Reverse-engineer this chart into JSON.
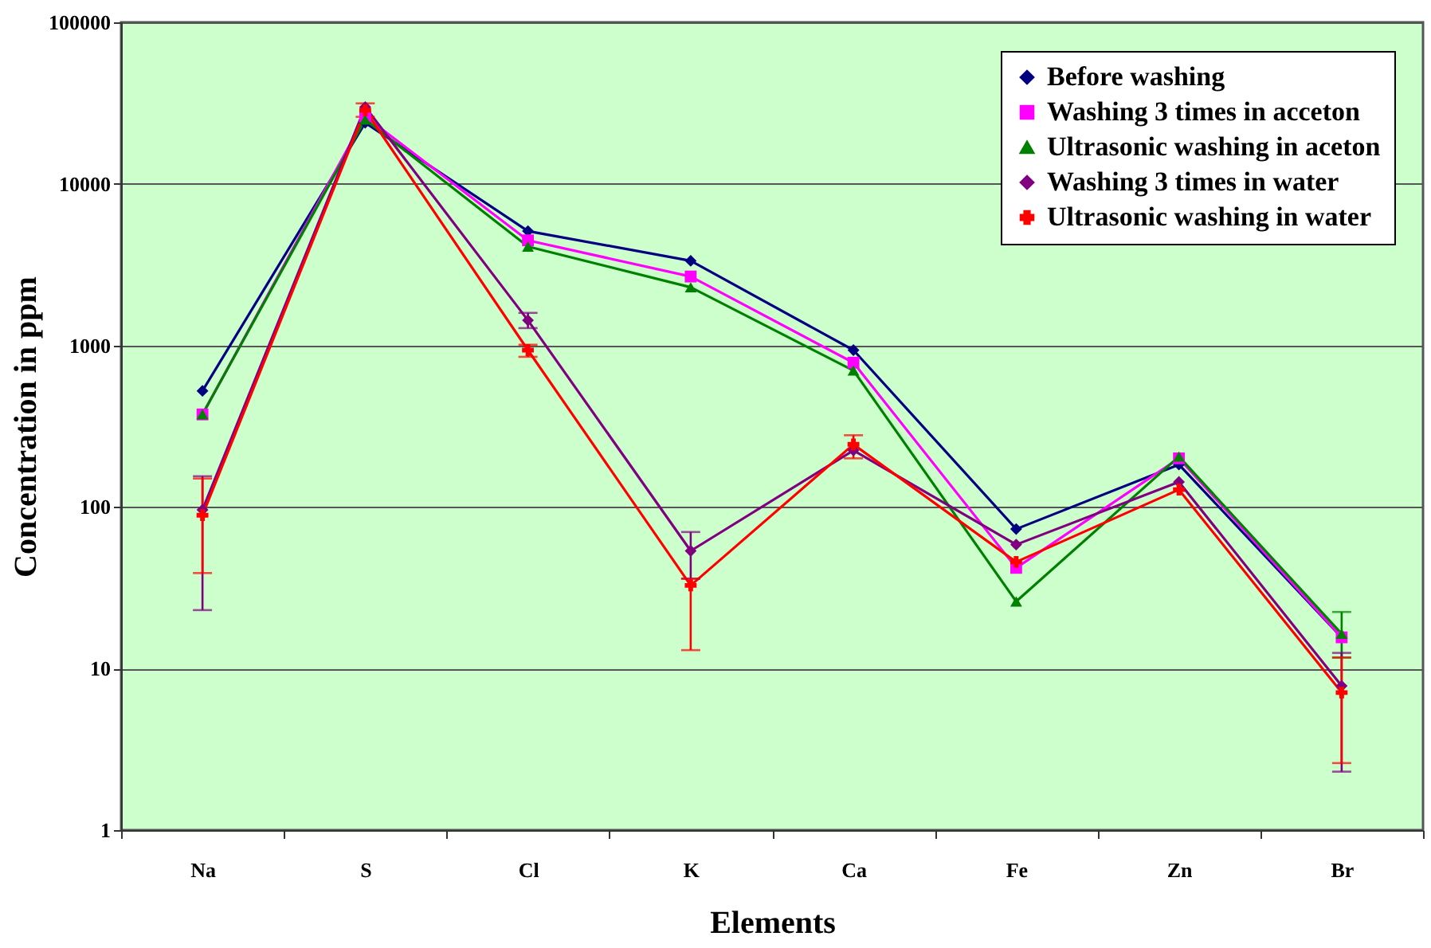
{
  "chart_data": {
    "type": "line",
    "xlabel": "Elements",
    "ylabel": "Concentration in ppm",
    "categories": [
      "Na",
      "S",
      "Cl",
      "K",
      "Ca",
      "Fe",
      "Zn",
      "Br"
    ],
    "log": "y",
    "ylim": [
      1,
      100000
    ],
    "yticks": [
      1,
      10,
      100,
      1000,
      10000,
      100000
    ],
    "grid": "y",
    "legend": "top right",
    "line_style": "solid",
    "series": [
      {
        "name": "Before washing",
        "color": "#000080",
        "marker": "diamond",
        "values": [
          523,
          23900,
          5100,
          3340,
          935,
          73,
          183,
          15.6
        ]
      },
      {
        "name": "Washing 3 times in acceton",
        "color": "#ff00ff",
        "marker": "square",
        "values": [
          374,
          26100,
          4470,
          2670,
          782,
          42,
          200,
          15.6
        ]
      },
      {
        "name": "Ultrasonic washing in aceton",
        "color": "#008000",
        "marker": "triangle",
        "values": [
          375,
          25000,
          4090,
          2290,
          699,
          26,
          205,
          16.4
        ],
        "errors": [
          null,
          null,
          null,
          null,
          null,
          null,
          null,
          [
            11.7,
            22.4
          ]
        ]
      },
      {
        "name": "Washing 3 times in water",
        "color": "#800080",
        "marker": "diamond",
        "values": [
          96,
          29900,
          1430,
          53.5,
          224,
          58.5,
          143,
          7.8
        ],
        "errors": [
          [
            23,
            155
          ],
          null,
          [
            1280,
            1590
          ],
          [
            36,
            70
          ],
          null,
          null,
          null,
          [
            2.3,
            12.5
          ]
        ]
      },
      {
        "name": "Ultrasonic washing in water",
        "color": "#ff0000",
        "marker": "cross",
        "values": [
          89,
          28600,
          935,
          32.7,
          244,
          45.7,
          128,
          7.1
        ],
        "errors": [
          [
            39,
            150
          ],
          [
            26000,
            31500
          ],
          [
            850,
            1010
          ],
          [
            13,
            36
          ],
          [
            200,
            278
          ],
          null,
          null,
          [
            2.6,
            11.7
          ]
        ]
      }
    ]
  }
}
